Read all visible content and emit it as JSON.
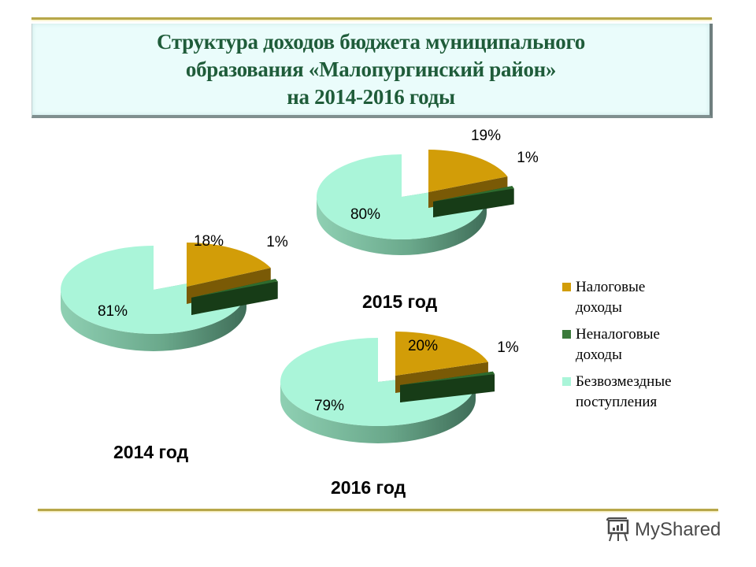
{
  "title": {
    "lines": [
      "Структура доходов бюджета муниципального",
      "образования «Малопургинский район»",
      "на 2014-2016 годы"
    ]
  },
  "colors": {
    "tax": "#d29d08",
    "tax_side": "#7a5a06",
    "nontax": "#2e6b2e",
    "nontax_side": "#173c17",
    "grants": "#aaf5d9",
    "grants_side": "#5c9a7e",
    "title_text": "#1f5c3a",
    "gold_line": "#b7a74a"
  },
  "legend": {
    "items": [
      {
        "label": "Налоговые доходы",
        "line1": "Налоговые",
        "line2": "доходы",
        "color": "#d29d08"
      },
      {
        "label": "Неналоговые доходы",
        "line1": "Неналоговые",
        "line2": "доходы",
        "color": "#3a7a3a"
      },
      {
        "label": "Безвозмездные поступления",
        "line1": "Безвозмездные",
        "line2": "поступления",
        "color": "#aaf5d9"
      }
    ]
  },
  "years": {
    "y2014": "2014 год",
    "y2015": "2015 год",
    "y2016": "2016 год"
  },
  "brand": {
    "name": "MyShared",
    "icon": "presentation-board-icon"
  },
  "chart_data": [
    {
      "type": "pie",
      "title": "2014 год",
      "categories": [
        "Налоговые доходы",
        "Неналоговые доходы",
        "Безвозмездные поступления"
      ],
      "values": [
        18,
        1,
        81
      ],
      "labels": [
        "18%",
        "1%",
        "81%"
      ]
    },
    {
      "type": "pie",
      "title": "2015 год",
      "categories": [
        "Налоговые доходы",
        "Неналоговые доходы",
        "Безвозмездные поступления"
      ],
      "values": [
        19,
        1,
        80
      ],
      "labels": [
        "19%",
        "1%",
        "80%"
      ]
    },
    {
      "type": "pie",
      "title": "2016 год",
      "categories": [
        "Налоговые доходы",
        "Неналоговые доходы",
        "Безвозмездные поступления"
      ],
      "values": [
        20,
        1,
        79
      ],
      "labels": [
        "20%",
        "1%",
        "79%"
      ]
    }
  ]
}
